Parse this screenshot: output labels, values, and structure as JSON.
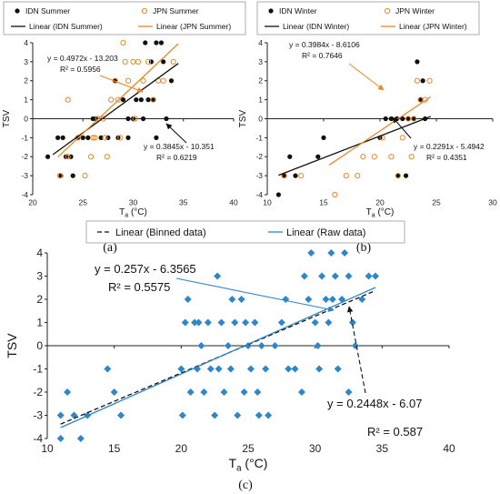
{
  "colors": {
    "idn": "#111111",
    "jpn": "#e8892b",
    "raw": "#2f86c8",
    "binned": "#111111",
    "axis": "#222222",
    "legend_border": "#9a9a9a"
  },
  "chart_data": [
    {
      "id": "a",
      "type": "scatter",
      "caption": "(a)",
      "xlabel": "T",
      "xlabel_sub": "a",
      "xlabel_unit": " (°C)",
      "ylabel": "TSV",
      "xlim": [
        20,
        40
      ],
      "ylim": [
        -4,
        4
      ],
      "xticks": [
        20,
        25,
        30,
        35,
        40
      ],
      "yticks": [
        -4,
        -3,
        -2,
        -1,
        0,
        1,
        2,
        3,
        4
      ],
      "legend": [
        "IDN Summer",
        "JPN Summer",
        "Linear (IDN Summer)",
        "Linear (JPN Summer)"
      ],
      "series": [
        {
          "name": "IDN Summer",
          "marker": "filled-circle",
          "points": [
            [
              21.5,
              -2
            ],
            [
              22.5,
              -1
            ],
            [
              23,
              -1
            ],
            [
              23.3,
              -2
            ],
            [
              23.8,
              -2
            ],
            [
              22.8,
              -3
            ],
            [
              24.5,
              -1
            ],
            [
              25,
              -1
            ],
            [
              25.5,
              -1
            ],
            [
              26,
              0
            ],
            [
              26.3,
              0
            ],
            [
              26.8,
              -1
            ],
            [
              27.5,
              -1
            ],
            [
              28.5,
              -1
            ],
            [
              29,
              1
            ],
            [
              29.5,
              0
            ],
            [
              30,
              0
            ],
            [
              30.3,
              1
            ],
            [
              30.8,
              1
            ],
            [
              31,
              0
            ],
            [
              31.5,
              1
            ],
            [
              32,
              1
            ],
            [
              31.8,
              3
            ],
            [
              32.3,
              4
            ],
            [
              32.8,
              4
            ],
            [
              33,
              3
            ],
            [
              33.3,
              0
            ],
            [
              33.8,
              2
            ],
            [
              31.2,
              4
            ],
            [
              28.2,
              2
            ],
            [
              29.5,
              -1
            ],
            [
              24,
              -3
            ],
            [
              32.3,
              -1
            ]
          ]
        },
        {
          "name": "JPN Summer",
          "marker": "hollow-circle",
          "points": [
            [
              22.7,
              -3
            ],
            [
              23.5,
              -2
            ],
            [
              24.5,
              -1
            ],
            [
              25.2,
              -3
            ],
            [
              25.8,
              -2
            ],
            [
              26.2,
              -1
            ],
            [
              26.5,
              0
            ],
            [
              27,
              0
            ],
            [
              27.4,
              -2
            ],
            [
              27.8,
              1
            ],
            [
              28.2,
              2
            ],
            [
              28.5,
              1
            ],
            [
              29,
              4
            ],
            [
              29.2,
              3
            ],
            [
              29.5,
              2
            ],
            [
              30,
              3
            ],
            [
              30.5,
              3
            ],
            [
              31,
              2
            ],
            [
              31.5,
              3
            ],
            [
              32,
              1
            ],
            [
              32.5,
              2
            ],
            [
              33,
              2
            ],
            [
              34,
              3
            ],
            [
              23.5,
              1
            ],
            [
              26,
              -1
            ],
            [
              27.2,
              -1
            ],
            [
              28.7,
              -1
            ],
            [
              30.2,
              0
            ]
          ]
        }
      ],
      "trendlines": [
        {
          "name": "Linear (IDN Summer)",
          "slope": 0.3845,
          "intercept": -10.351,
          "x_range": [
            22,
            34.5
          ]
        },
        {
          "name": "Linear (JPN Summer)",
          "slope": 0.4972,
          "intercept": -13.203,
          "x_range": [
            22.5,
            34.5
          ]
        }
      ],
      "annotations": [
        {
          "lines": [
            "y = 0.4972x - 13.203",
            "R² = 0.5956"
          ]
        },
        {
          "lines": [
            "y = 0.3845x - 10.351",
            "R² = 0.6219"
          ]
        }
      ]
    },
    {
      "id": "b",
      "type": "scatter",
      "caption": "(b)",
      "xlabel": "T",
      "xlabel_sub": "a",
      "xlabel_unit": " (°C)",
      "ylabel": "TSV",
      "xlim": [
        10,
        30
      ],
      "ylim": [
        -4,
        4
      ],
      "xticks": [
        10,
        15,
        20,
        25,
        30
      ],
      "yticks": [
        -4,
        -3,
        -2,
        -1,
        0,
        1,
        2,
        3,
        4
      ],
      "legend": [
        "IDN Winter",
        "JPN Winter",
        "Linear (IDN Winter)",
        "Linear (JPN Winter)"
      ],
      "series": [
        {
          "name": "IDN Winter",
          "marker": "filled-circle",
          "points": [
            [
              11,
              -4
            ],
            [
              11.5,
              -3
            ],
            [
              12,
              -2
            ],
            [
              12.5,
              -3
            ],
            [
              14.5,
              -2
            ],
            [
              15,
              -1
            ],
            [
              20,
              -1
            ],
            [
              20.5,
              0
            ],
            [
              21,
              0
            ],
            [
              21.5,
              0
            ],
            [
              22,
              0
            ],
            [
              22.5,
              0
            ],
            [
              23,
              0
            ],
            [
              23.3,
              3
            ],
            [
              23.6,
              1
            ],
            [
              24,
              0
            ],
            [
              21.6,
              -3
            ],
            [
              22.3,
              -3
            ],
            [
              23.8,
              2
            ]
          ]
        },
        {
          "name": "JPN Winter",
          "marker": "hollow-circle",
          "points": [
            [
              11.5,
              -3
            ],
            [
              13,
              -3
            ],
            [
              16,
              -4
            ],
            [
              17,
              -3
            ],
            [
              18,
              -3
            ],
            [
              18.5,
              -2
            ],
            [
              19.5,
              -2
            ],
            [
              20.2,
              -1
            ],
            [
              21,
              -2
            ],
            [
              21.6,
              -3
            ],
            [
              22,
              -1
            ],
            [
              22.5,
              0
            ],
            [
              23,
              0
            ],
            [
              23.3,
              2
            ],
            [
              23.6,
              1
            ],
            [
              24,
              1
            ],
            [
              24.4,
              2
            ],
            [
              22.8,
              -2
            ]
          ]
        }
      ],
      "trendlines": [
        {
          "name": "Linear (IDN Winter)",
          "slope": 0.2291,
          "intercept": -5.4942,
          "x_range": [
            11,
            24.5
          ]
        },
        {
          "name": "Linear (JPN Winter)",
          "slope": 0.3984,
          "intercept": -8.6106,
          "x_range": [
            15.5,
            24.5
          ]
        }
      ],
      "annotations": [
        {
          "lines": [
            "y = 0.3984x - 8.6106",
            "R² = 0.7646"
          ]
        },
        {
          "lines": [
            "y = 0.2291x - 5.4942",
            "R² = 0.4351"
          ]
        }
      ]
    },
    {
      "id": "c",
      "type": "scatter",
      "caption": "(c)",
      "xlabel": "T",
      "xlabel_sub": "a",
      "xlabel_unit": " (°C)",
      "ylabel": "TSV",
      "xlim": [
        10,
        40
      ],
      "ylim": [
        -4,
        4
      ],
      "xticks": [
        10,
        15,
        20,
        25,
        30,
        35,
        40
      ],
      "yticks": [
        -4,
        -3,
        -2,
        -1,
        0,
        1,
        2,
        3,
        4
      ],
      "legend": [
        "Linear (Binned data)",
        "Linear (Raw data)"
      ],
      "series": [
        {
          "name": "Raw data",
          "marker": "diamond",
          "points": [
            [
              11,
              -3
            ],
            [
              11,
              -4
            ],
            [
              11.5,
              -2
            ],
            [
              12,
              -3
            ],
            [
              12.5,
              -4
            ],
            [
              13,
              -3
            ],
            [
              14.5,
              -1
            ],
            [
              15,
              -2
            ],
            [
              15.5,
              -3
            ],
            [
              20,
              -1
            ],
            [
              20.3,
              1
            ],
            [
              20.5,
              2
            ],
            [
              20.7,
              -2
            ],
            [
              21,
              1
            ],
            [
              21.2,
              -1
            ],
            [
              21.5,
              0
            ],
            [
              21.7,
              -2
            ],
            [
              22,
              1
            ],
            [
              22.2,
              -1
            ],
            [
              22.5,
              -3
            ],
            [
              22.7,
              3
            ],
            [
              23,
              1
            ],
            [
              23.2,
              -2
            ],
            [
              23.5,
              0
            ],
            [
              23.7,
              -1
            ],
            [
              24,
              1
            ],
            [
              24.2,
              -3
            ],
            [
              24.5,
              2
            ],
            [
              24.7,
              -2
            ],
            [
              25,
              0
            ],
            [
              25.2,
              -1
            ],
            [
              25.5,
              1
            ],
            [
              25.7,
              -2
            ],
            [
              26,
              0
            ],
            [
              26.3,
              -1
            ],
            [
              26.5,
              -3
            ],
            [
              27,
              0
            ],
            [
              27.5,
              1
            ],
            [
              28,
              -1
            ],
            [
              29,
              -2
            ],
            [
              29.2,
              3
            ],
            [
              29.5,
              2
            ],
            [
              29.7,
              4
            ],
            [
              30,
              1
            ],
            [
              30.2,
              0
            ],
            [
              30.5,
              3
            ],
            [
              30.8,
              2
            ],
            [
              31,
              1
            ],
            [
              31.2,
              4
            ],
            [
              31.5,
              3
            ],
            [
              31.7,
              -1
            ],
            [
              32,
              2
            ],
            [
              32.2,
              4
            ],
            [
              32.5,
              3
            ],
            [
              32.8,
              1
            ],
            [
              33,
              0
            ],
            [
              33.5,
              2
            ],
            [
              34,
              3
            ],
            [
              34.5,
              3
            ],
            [
              21.3,
              1
            ],
            [
              22.8,
              -1
            ],
            [
              23.8,
              2
            ],
            [
              24.8,
              1
            ],
            [
              27.8,
              2
            ],
            [
              28.5,
              -1
            ],
            [
              30.3,
              -1
            ],
            [
              31.3,
              2
            ],
            [
              20.1,
              -3
            ],
            [
              25.8,
              -3
            ],
            [
              32.5,
              -2
            ]
          ]
        }
      ],
      "trendlines": [
        {
          "name": "Linear (Binned data)",
          "slope": 0.2448,
          "intercept": -6.07,
          "x_range": [
            11,
            34.5
          ],
          "style": "dashed"
        },
        {
          "name": "Linear (Raw data)",
          "slope": 0.257,
          "intercept": -6.3565,
          "x_range": [
            11,
            34.5
          ],
          "style": "solid"
        }
      ],
      "annotations": [
        {
          "lines": [
            "y = 0.257x - 6.3565",
            "R² = 0.5575"
          ]
        },
        {
          "lines": [
            "y = 0.2448x - 6.07"
          ]
        },
        {
          "lines": [
            "R² = 0.587"
          ]
        }
      ]
    }
  ]
}
